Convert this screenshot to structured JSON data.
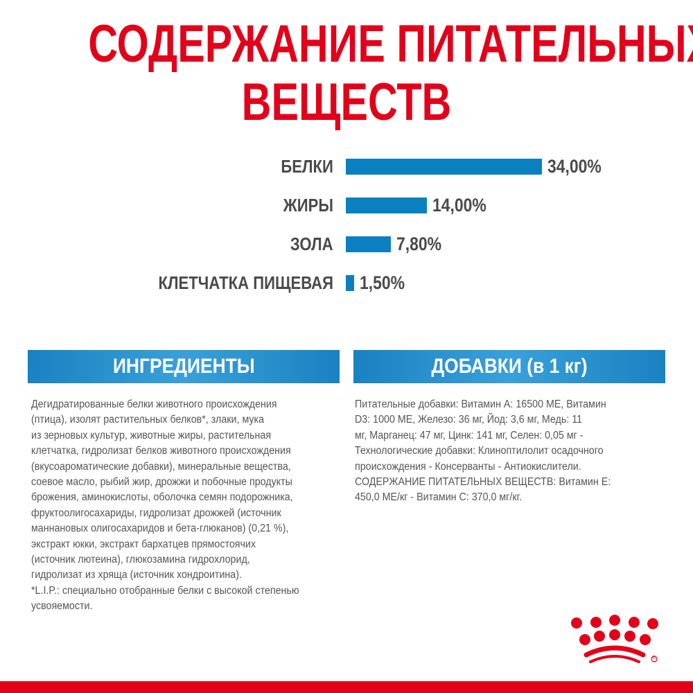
{
  "title": {
    "line1": "СОДЕРЖАНИЕ ПИТАТЕЛЬНЫХ",
    "line2": "ВЕЩЕСТВ"
  },
  "colors": {
    "accent_red": "#e2001a",
    "bar_blue": "#0a80c0",
    "text_grey": "#4a4a4a"
  },
  "chart_data": {
    "type": "bar",
    "orientation": "horizontal",
    "categories": [
      "БЕЛКИ",
      "ЖИРЫ",
      "ЗОЛА",
      "КЛЕТЧАТКА ПИЩЕВАЯ"
    ],
    "values": [
      34.0,
      14.0,
      7.8,
      1.5
    ],
    "value_labels": [
      "34,00%",
      "14,00%",
      "7,80%",
      "1,50%"
    ],
    "unit": "%",
    "grid": false
  },
  "ingredients": {
    "header": "ИНГРЕДИЕНТЫ",
    "lines": [
      "Дегидратированные белки животного происхождения",
      "(птица), изолят растительных белков*, злаки, мука",
      "из зерновых культур, животные жиры, растительная",
      "клетчатка, гидролизат белков животного происхождения",
      "(вкусоароматические добавки), минеральные вещества,",
      "соевое масло, рыбий жир, дрожжи и побочные продукты",
      "брожения, аминокислоты, оболочка семян подорожника,",
      "фруктоолигосахариды, гидролизат дрожжей (источник",
      "маннановых олигосахаридов и бета-глюканов) (0,21 %),",
      "экстракт юкки, экстракт бархатцев прямостоячих",
      "(источник лютеина), глюкозамина гидрохлорид,",
      "гидролизат из хряща (источник хондроитина).",
      "*L.I.P.: специально отобранные белки с высокой степенью",
      "усвояемости."
    ]
  },
  "additives": {
    "header": "ДОБАВКИ (в 1 кг)",
    "lines": [
      "Питательные добавки: Витамин А: 16500 МЕ, Витамин",
      "D3: 1000 МЕ, Железо: 36 мг, Йод: 3,6 мг, Медь: 11",
      "мг, Марганец: 47 мг, Цинк: 141 мг, Селен: 0,05 мг -",
      "Технологические добавки: Клиноптилолит осадочного",
      "происхождения - Консерванты - Антиокислители.",
      "СОДЕРЖАНИЕ ПИТАТЕЛЬНЫХ ВЕЩЕСТВ: Витамин Е:",
      "450,0 МЕ/кг - Витамин С: 370,0 мг/кг."
    ]
  },
  "logo": {
    "icon": "royal-canin-crown-icon",
    "mark": "®"
  }
}
